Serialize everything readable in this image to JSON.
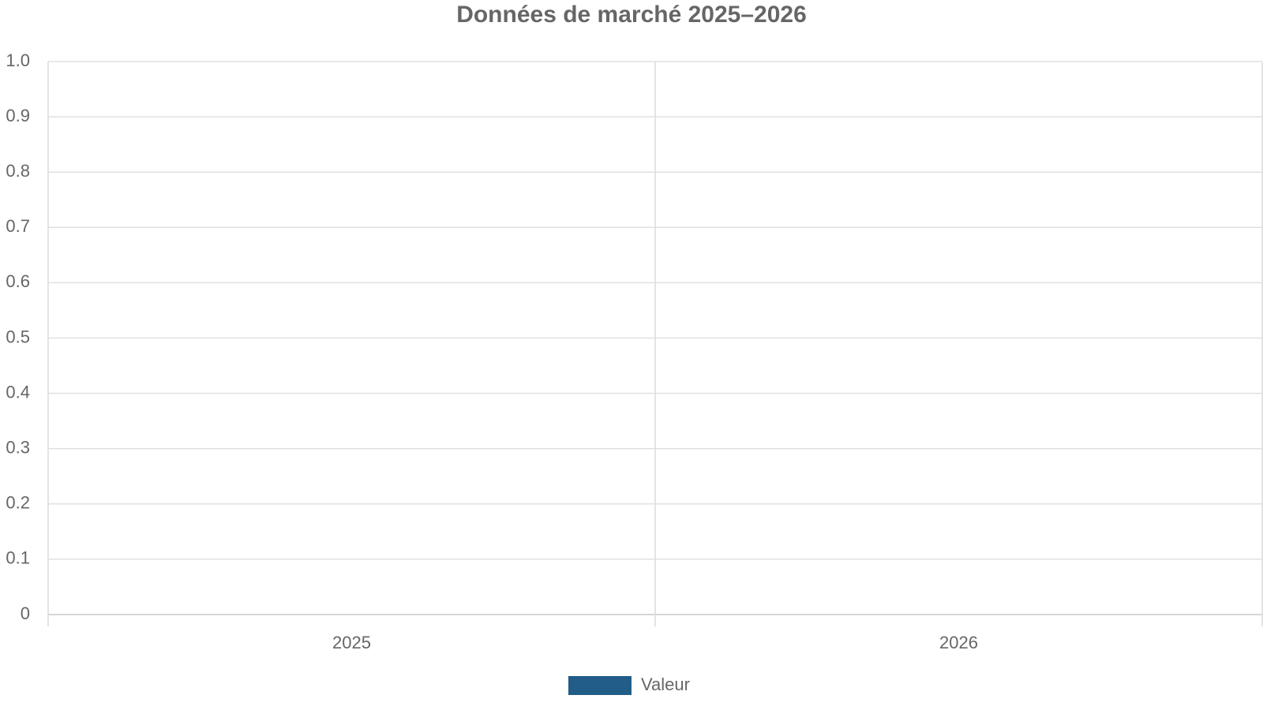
{
  "chart_data": {
    "type": "bar",
    "title": "Données de marché 2025–2026",
    "categories": [
      "2025",
      "2026"
    ],
    "series": [
      {
        "name": "Valeur",
        "color": "#215d87",
        "values": [
          0,
          0
        ]
      }
    ],
    "ylim": [
      0,
      1
    ],
    "yticks": [
      0,
      0.1,
      0.2,
      0.3,
      0.4,
      0.5,
      0.6,
      0.7,
      0.8,
      0.9,
      {
        "value": 1,
        "label": "1.0"
      }
    ],
    "grid": true,
    "legend": "bottom"
  }
}
